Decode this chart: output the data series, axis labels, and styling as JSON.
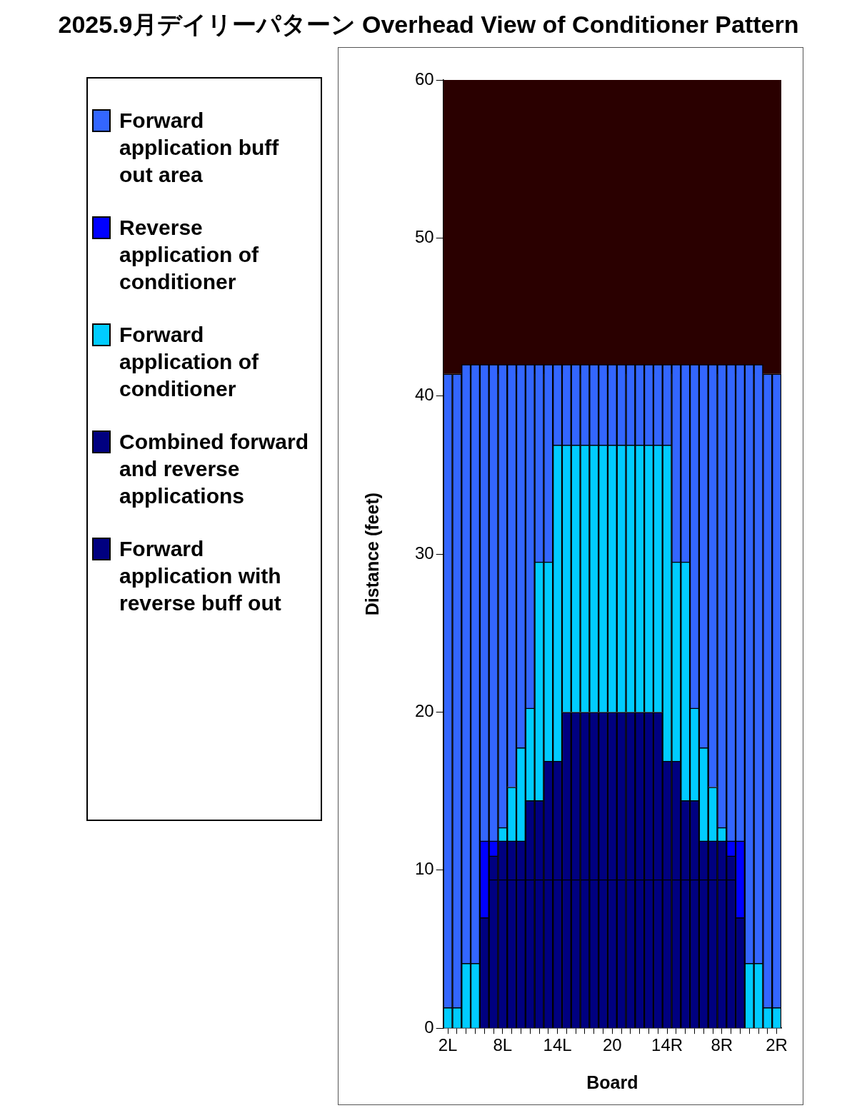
{
  "chart_data": {
    "type": "bar",
    "title": "2025.9月デイリーパターン Overhead View of Conditioner Pattern",
    "xlabel": "Board",
    "ylabel": "Distance (feet)",
    "categories": [
      "2L",
      null,
      null,
      null,
      null,
      null,
      "8L",
      null,
      null,
      null,
      null,
      null,
      "14L",
      null,
      null,
      null,
      null,
      null,
      "20",
      null,
      null,
      null,
      null,
      null,
      "14R",
      null,
      null,
      null,
      null,
      null,
      "8R",
      null,
      null,
      null,
      null,
      null,
      "2R"
    ],
    "stacked": true,
    "ylim": [
      0,
      60
    ],
    "yticks": [
      0,
      10,
      20,
      30,
      40,
      50,
      60
    ],
    "grid": false,
    "legend": "left",
    "series": [
      {
        "name": "Forward application with reverse buff out",
        "color": "#000080",
        "values": [
          0,
          0,
          0,
          0,
          7,
          9.4,
          9.4,
          9.4,
          9.4,
          9.4,
          9.4,
          9.4,
          9.4,
          9.4,
          9.4,
          9.4,
          9.4,
          9.4,
          9.4,
          9.4,
          9.4,
          9.4,
          9.4,
          9.4,
          9.4,
          9.4,
          9.4,
          9.4,
          9.4,
          9.4,
          9.4,
          9.4,
          7,
          0,
          0,
          0,
          0
        ]
      },
      {
        "name": "Combined forward and reverse applications",
        "color": "#000080",
        "values": [
          0,
          0,
          0,
          0,
          0,
          1.5,
          2.45,
          2.45,
          2.45,
          5,
          5,
          7.5,
          7.5,
          10.6,
          10.6,
          10.6,
          10.6,
          10.6,
          10.6,
          10.6,
          10.6,
          10.6,
          10.6,
          10.6,
          7.5,
          7.5,
          5,
          5,
          2.45,
          2.45,
          2.45,
          1.5,
          0,
          0,
          0,
          0,
          0
        ]
      },
      {
        "name": "Forward application of conditioner",
        "color": "#00ccff",
        "values": [
          1.3,
          1.3,
          4.1,
          4.1,
          0,
          0,
          0.85,
          3.4,
          5.9,
          5.85,
          15.1,
          12.6,
          20,
          16.9,
          16.9,
          16.9,
          16.9,
          16.9,
          16.9,
          16.9,
          16.9,
          16.9,
          16.9,
          16.9,
          20,
          12.6,
          15.1,
          5.85,
          5.9,
          3.4,
          0.85,
          0,
          0,
          4.1,
          4.1,
          1.3,
          1.3
        ]
      },
      {
        "name": "Reverse application of conditioner",
        "color": "#0000ff",
        "values": [
          0,
          0,
          0,
          0,
          4.85,
          0.95,
          0,
          0,
          0,
          0,
          0,
          0,
          0,
          0,
          0,
          0,
          0,
          0,
          0,
          0,
          0,
          0,
          0,
          0,
          0,
          0,
          0,
          0,
          0,
          0,
          0,
          0.95,
          4.85,
          0,
          0,
          0,
          0
        ]
      },
      {
        "name": "Forward application buff out area",
        "color": "#3366ff",
        "values": [
          40.1,
          40.1,
          37.9,
          37.9,
          30.15,
          30.15,
          29.3,
          26.75,
          24.25,
          21.75,
          12.5,
          12.5,
          5.1,
          5.1,
          5.1,
          5.1,
          5.1,
          5.1,
          5.1,
          5.1,
          5.1,
          5.1,
          5.1,
          5.1,
          5.1,
          12.5,
          12.5,
          21.75,
          24.25,
          26.75,
          29.3,
          30.15,
          30.15,
          37.9,
          37.9,
          40.1,
          40.1
        ]
      }
    ],
    "bands": [
      {
        "axis": "y",
        "from": 41.4,
        "to": 60,
        "color": "#2a0000"
      }
    ]
  }
}
